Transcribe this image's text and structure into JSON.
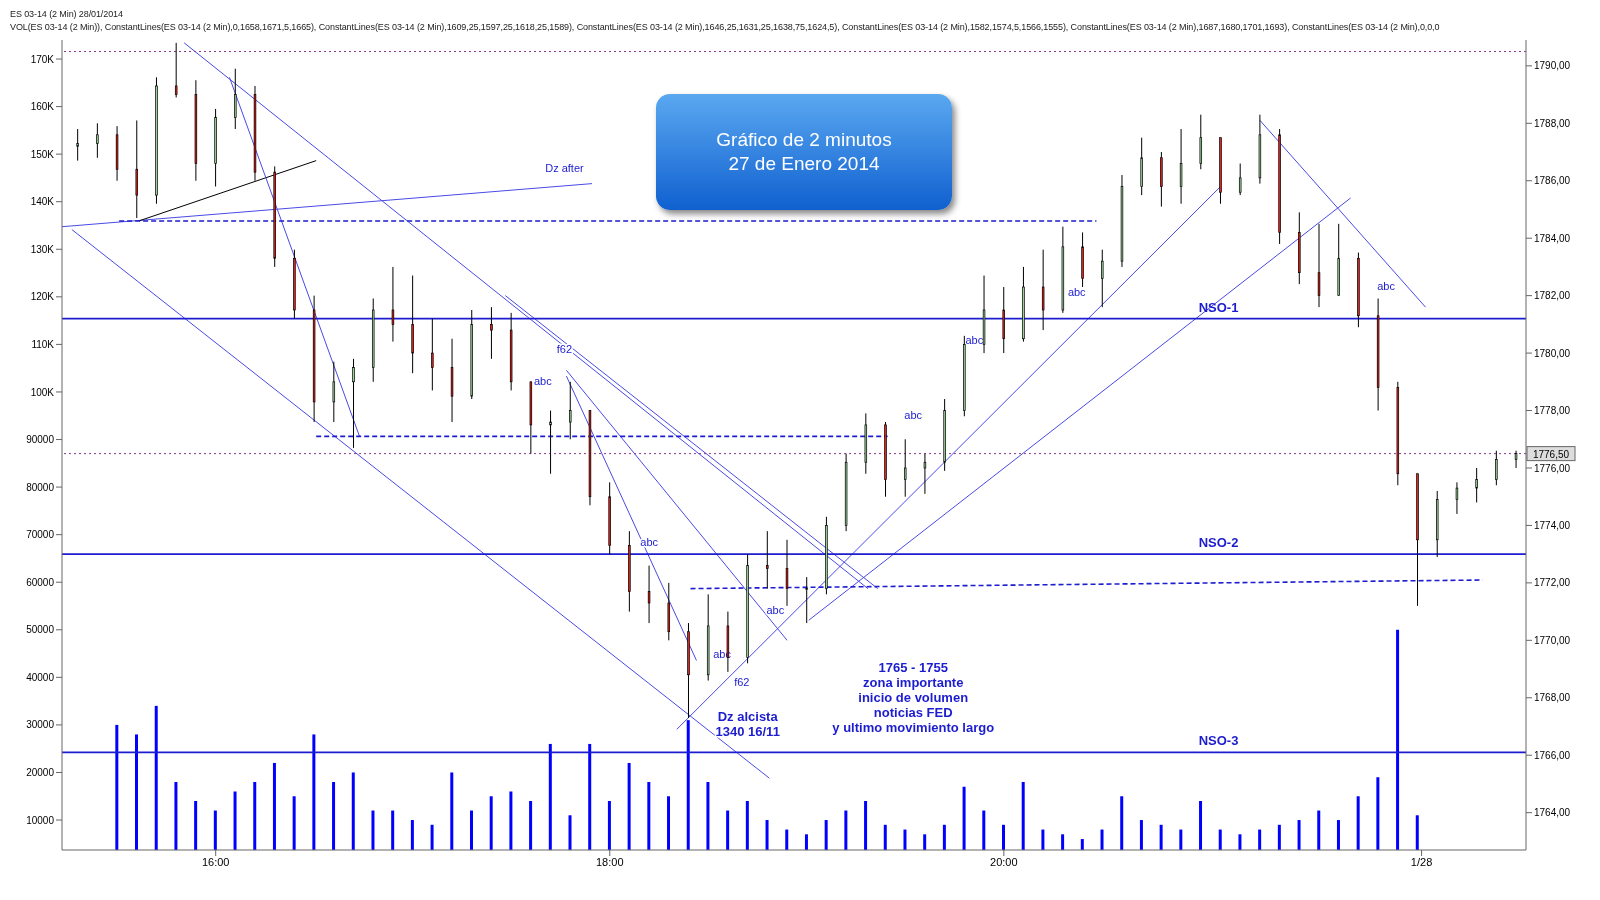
{
  "chart_data": {
    "type": "candlestick",
    "title": "Gráfico de 2 minutos",
    "subtitle": "27 de Enero 2014",
    "x": [
      15.3,
      15.4,
      15.5,
      15.6,
      15.7,
      15.8,
      15.9,
      16.0,
      16.1,
      16.2,
      16.3,
      16.4,
      16.5,
      16.6,
      16.7,
      16.8,
      16.9,
      17.0,
      17.1,
      17.2,
      17.3,
      17.4,
      17.5,
      17.6,
      17.7,
      17.8,
      17.9,
      18.0,
      18.1,
      18.2,
      18.3,
      18.4,
      18.5,
      18.6,
      18.7,
      18.8,
      18.9,
      19.0,
      19.1,
      19.2,
      19.3,
      19.4,
      19.5,
      19.6,
      19.7,
      19.8,
      19.9,
      20.0,
      20.1,
      20.2,
      20.3,
      20.4,
      20.5,
      20.6,
      20.7,
      20.8,
      20.9,
      21.0,
      21.1,
      21.2,
      21.3,
      21.4,
      21.5,
      21.6,
      21.7,
      21.8,
      21.9,
      22.0,
      22.1,
      22.2,
      22.3,
      22.4,
      22.5,
      22.6
    ],
    "series": [
      {
        "axis": "y2",
        "ohlc": [
          [
            1787.2,
            1787.8,
            1786.7,
            1787.3
          ],
          [
            1787.3,
            1788.0,
            1786.8,
            1787.6
          ],
          [
            1787.6,
            1787.9,
            1786.0,
            1786.4
          ],
          [
            1786.4,
            1788.1,
            1784.7,
            1785.5
          ],
          [
            1785.5,
            1789.6,
            1785.2,
            1789.3
          ],
          [
            1789.3,
            1790.8,
            1788.9,
            1789.0
          ],
          [
            1789.0,
            1789.5,
            1786.0,
            1786.6
          ],
          [
            1786.6,
            1788.5,
            1785.8,
            1788.2
          ],
          [
            1788.2,
            1789.9,
            1787.8,
            1789.0
          ],
          [
            1789.0,
            1789.3,
            1786.0,
            1786.3
          ],
          [
            1786.3,
            1786.5,
            1783.0,
            1783.3
          ],
          [
            1783.3,
            1783.6,
            1781.2,
            1781.5
          ],
          [
            1781.5,
            1782.0,
            1777.6,
            1778.3
          ],
          [
            1778.3,
            1779.7,
            1777.6,
            1779.0
          ],
          [
            1779.0,
            1779.8,
            1776.7,
            1779.5
          ],
          [
            1779.5,
            1781.9,
            1779.0,
            1781.5
          ],
          [
            1781.5,
            1783.0,
            1780.4,
            1781.0
          ],
          [
            1781.0,
            1782.7,
            1779.3,
            1780.0
          ],
          [
            1780.0,
            1781.2,
            1778.7,
            1779.5
          ],
          [
            1779.5,
            1780.5,
            1777.6,
            1778.5
          ],
          [
            1778.5,
            1781.5,
            1778.4,
            1781.0
          ],
          [
            1781.0,
            1781.6,
            1779.8,
            1780.8
          ],
          [
            1780.8,
            1781.4,
            1778.7,
            1779.0
          ],
          [
            1779.0,
            1779.0,
            1776.5,
            1777.5
          ],
          [
            1777.5,
            1778.0,
            1775.8,
            1777.6
          ],
          [
            1777.6,
            1779.0,
            1777.0,
            1778.0
          ],
          [
            1778.0,
            1778.0,
            1774.7,
            1775.0
          ],
          [
            1775.0,
            1775.5,
            1773.0,
            1773.3
          ],
          [
            1773.3,
            1773.8,
            1771.0,
            1771.7
          ],
          [
            1771.7,
            1772.6,
            1770.6,
            1771.3
          ],
          [
            1771.3,
            1772.0,
            1770.0,
            1770.3
          ],
          [
            1770.3,
            1770.6,
            1767.3,
            1768.8
          ],
          [
            1768.8,
            1771.6,
            1768.6,
            1770.5
          ],
          [
            1770.5,
            1771.0,
            1768.9,
            1769.4
          ],
          [
            1769.4,
            1773.0,
            1769.2,
            1772.6
          ],
          [
            1772.6,
            1773.8,
            1771.8,
            1772.5
          ],
          [
            1772.5,
            1773.5,
            1771.2,
            1771.8
          ],
          [
            1771.8,
            1772.2,
            1770.6,
            1771.8
          ],
          [
            1771.8,
            1774.3,
            1771.6,
            1774.0
          ],
          [
            1774.0,
            1776.5,
            1773.8,
            1776.2
          ],
          [
            1776.2,
            1777.9,
            1775.8,
            1777.5
          ],
          [
            1777.5,
            1777.6,
            1775.0,
            1775.6
          ],
          [
            1775.6,
            1777.0,
            1775.0,
            1776.0
          ],
          [
            1776.0,
            1776.5,
            1775.1,
            1776.2
          ],
          [
            1776.2,
            1778.4,
            1775.9,
            1778.0
          ],
          [
            1778.0,
            1780.6,
            1777.8,
            1780.3
          ],
          [
            1780.3,
            1782.7,
            1780.0,
            1781.5
          ],
          [
            1781.5,
            1782.3,
            1780.0,
            1780.5
          ],
          [
            1780.5,
            1783.0,
            1780.4,
            1782.3
          ],
          [
            1782.3,
            1783.6,
            1780.8,
            1781.5
          ],
          [
            1781.5,
            1784.4,
            1781.4,
            1783.7
          ],
          [
            1783.7,
            1784.2,
            1782.3,
            1782.6
          ],
          [
            1782.6,
            1783.6,
            1781.6,
            1783.2
          ],
          [
            1783.2,
            1786.2,
            1783.0,
            1785.8
          ],
          [
            1785.8,
            1787.5,
            1785.5,
            1786.8
          ],
          [
            1786.8,
            1787.0,
            1785.1,
            1785.8
          ],
          [
            1785.8,
            1787.8,
            1785.2,
            1786.6
          ],
          [
            1786.6,
            1788.3,
            1786.4,
            1787.5
          ],
          [
            1787.5,
            1787.5,
            1785.2,
            1785.6
          ],
          [
            1785.6,
            1786.6,
            1785.5,
            1786.1
          ],
          [
            1786.1,
            1788.3,
            1785.9,
            1787.6
          ],
          [
            1787.6,
            1787.8,
            1783.8,
            1784.2
          ],
          [
            1784.2,
            1784.9,
            1782.4,
            1782.8
          ],
          [
            1782.8,
            1784.5,
            1781.6,
            1782.0
          ],
          [
            1782.0,
            1784.5,
            1782.0,
            1783.3
          ],
          [
            1783.3,
            1783.5,
            1780.9,
            1781.3
          ],
          [
            1781.3,
            1781.9,
            1778.0,
            1778.8
          ],
          [
            1778.8,
            1779.0,
            1775.4,
            1775.8
          ],
          [
            1775.8,
            1775.8,
            1771.2,
            1773.5
          ],
          [
            1773.5,
            1775.2,
            1772.9,
            1774.9
          ],
          [
            1774.9,
            1775.5,
            1774.4,
            1775.3
          ],
          [
            1775.3,
            1776.0,
            1774.8,
            1775.6
          ],
          [
            1775.6,
            1776.6,
            1775.4,
            1776.3
          ],
          [
            1776.3,
            1776.6,
            1776.0,
            1776.5
          ]
        ]
      },
      {
        "type": "bar",
        "axis": "y",
        "color": "#0000ff",
        "values": [
          null,
          null,
          30000,
          28000,
          34000,
          18000,
          14000,
          12000,
          16000,
          18000,
          22000,
          15000,
          28000,
          18000,
          20000,
          12000,
          12000,
          10000,
          9000,
          20000,
          12000,
          15000,
          16000,
          14000,
          26000,
          11000,
          26000,
          14000,
          22000,
          18000,
          15000,
          31000,
          18000,
          12000,
          14000,
          10000,
          8000,
          7000,
          10000,
          12000,
          14000,
          9000,
          8000,
          7000,
          9000,
          17000,
          12000,
          9000,
          18000,
          8000,
          7000,
          6000,
          8000,
          15000,
          10000,
          9000,
          8000,
          14000,
          8000,
          7000,
          8000,
          9000,
          10000,
          12000,
          10000,
          15000,
          19000,
          50000,
          11000,
          null,
          null,
          null,
          null,
          null
        ]
      },
      {
        "type": "line",
        "axis": "y2",
        "color": "#4a4ae6",
        "x": [
          15.22,
          17.91
        ],
        "values": [
          1784.4,
          1785.9
        ]
      },
      {
        "type": "line",
        "axis": "y2",
        "color": "#000000",
        "x": [
          15.61,
          16.51
        ],
        "values": [
          1784.6,
          1786.7
        ]
      },
      {
        "type": "line",
        "axis": "y2",
        "color": "#4a4ae6",
        "x": [
          15.27,
          18.81
        ],
        "values": [
          1784.3,
          1765.2
        ]
      },
      {
        "type": "line",
        "axis": "y2",
        "color": "#4a4ae6",
        "x": [
          15.84,
          19.31
        ],
        "values": [
          1790.8,
          1771.8
        ]
      },
      {
        "type": "line",
        "axis": "y2",
        "color": "#4a4ae6",
        "x": [
          16.07,
          16.73
        ],
        "values": [
          1789.6,
          1777.1
        ]
      },
      {
        "type": "line",
        "axis": "y2",
        "color": "#4a4ae6",
        "x": [
          17.47,
          19.36
        ],
        "values": [
          1782.0,
          1771.8
        ]
      },
      {
        "type": "line",
        "axis": "y2",
        "color": "#4a4ae6",
        "x": [
          17.78,
          18.9
        ],
        "values": [
          1779.4,
          1770.0
        ]
      },
      {
        "type": "line",
        "axis": "y2",
        "color": "#4a4ae6",
        "x": [
          17.78,
          18.44
        ],
        "values": [
          1779.2,
          1769.3
        ]
      },
      {
        "type": "line",
        "axis": "y2",
        "color": "#4a4ae6",
        "x": [
          18.34,
          21.1
        ],
        "values": [
          1766.9,
          1785.8
        ]
      },
      {
        "type": "line",
        "axis": "y2",
        "color": "#4a4ae6",
        "x": [
          19.01,
          21.76
        ],
        "values": [
          1770.7,
          1785.4
        ]
      },
      {
        "type": "line",
        "axis": "y2",
        "color": "#4a4ae6",
        "x": [
          21.3,
          22.14
        ],
        "values": [
          1788.1,
          1781.6
        ]
      },
      {
        "type": "line",
        "axis": "y2",
        "color": "#1c1cd0",
        "line_style": "dashed",
        "x": [
          15.51,
          20.47
        ],
        "values": [
          1784.6,
          1784.6
        ]
      },
      {
        "type": "line",
        "axis": "y2",
        "color": "#1c1cd0",
        "line_style": "dashed",
        "x": [
          16.51,
          19.41
        ],
        "values": [
          1777.1,
          1777.1
        ]
      },
      {
        "type": "line",
        "axis": "y2",
        "color": "#1c1cd0",
        "line_style": "dashed",
        "x": [
          18.41,
          22.43
        ],
        "values": [
          1771.8,
          1772.1
        ]
      }
    ],
    "xlim": [
      15.22,
      22.65
    ],
    "xticks": [
      {
        "value": 16,
        "label": "16:00"
      },
      {
        "value": 18,
        "label": "18:00"
      },
      {
        "value": 20,
        "label": "20:00"
      },
      {
        "value": 22.12,
        "label": "1/28"
      }
    ],
    "ylim": [
      3700,
      174000
    ],
    "yticks": [
      10000,
      20000,
      30000,
      40000,
      50000,
      60000,
      70000,
      80000,
      90000,
      {
        "value": 100000,
        "label": "100K"
      },
      {
        "value": 110000,
        "label": "110K"
      },
      {
        "value": 120000,
        "label": "120K"
      },
      {
        "value": 130000,
        "label": "130K"
      },
      {
        "value": 140000,
        "label": "140K"
      },
      {
        "value": 150000,
        "label": "150K"
      },
      {
        "value": 160000,
        "label": "160K"
      },
      {
        "value": 170000,
        "label": "170K"
      }
    ],
    "y2lim": [
      1762.7,
      1790.9
    ],
    "y2ticks": [
      {
        "value": 1764,
        "label": "1764,00"
      },
      {
        "value": 1766,
        "label": "1766,00"
      },
      {
        "value": 1768,
        "label": "1768,00"
      },
      {
        "value": 1770,
        "label": "1770,00"
      },
      {
        "value": 1772,
        "label": "1772,00"
      },
      {
        "value": 1774,
        "label": "1774,00"
      },
      {
        "value": 1776,
        "label": "1776,00"
      },
      {
        "value": 1778,
        "label": "1778,00"
      },
      {
        "value": 1780,
        "label": "1780,00"
      },
      {
        "value": 1782,
        "label": "1782,00"
      },
      {
        "value": 1784,
        "label": "1784,00"
      },
      {
        "value": 1786,
        "label": "1786,00"
      },
      {
        "value": 1788,
        "label": "1788,00"
      },
      {
        "value": 1790,
        "label": "1790,00"
      }
    ],
    "ref_lines": [
      {
        "axis": "y2",
        "value": 1781.2,
        "label": "NSO-1",
        "color": "#1c1cd0"
      },
      {
        "axis": "y2",
        "value": 1773.0,
        "label": "NSO-2",
        "color": "#1c1cd0"
      },
      {
        "axis": "y2",
        "value": 1766.1,
        "label": "NSO-3",
        "color": "#1c1cd0"
      },
      {
        "axis": "y2",
        "value": 1790.5,
        "label": null,
        "color": "#8a3a8a",
        "line_style": "dotted"
      },
      {
        "axis": "y2",
        "value": 1776.5,
        "label": "1776,50",
        "color": "#8a3a8a",
        "line_style": "dotted"
      }
    ],
    "annotations": [
      "ES 03-14 (2 Min)  28/01/2014",
      "VOL(ES 03-14 (2 Min)), ConstantLines(ES 03-14 (2 Min),0,1658,1671,5,1665), ConstantLines(ES 03-14 (2 Min),1609,25,1597,25,1618,25,1589), ConstantLines(ES 03-14 (2 Min),1646,25,1631,25,1638,75,1624,5), ConstantLines(ES 03-14 (2 Min),1582,1574,5,1566,1555), ConstantLines(ES 03-14 (2 Min),1687,1680,1701,1693), ConstantLines(ES 03-14 (2 Min),0,0,0",
      "Dz after",
      "abc",
      "f62",
      "abc",
      "abc",
      "f62",
      "abc",
      "abc",
      "abc",
      "abc",
      "abc",
      "Dz alcista\n1340 16/11",
      "1765 - 1755\nzona importante\ninicio de volumen\nnoticias FED\ny ultimo movimiento largo"
    ],
    "grid": false,
    "legend": false,
    "marker": "none"
  }
}
